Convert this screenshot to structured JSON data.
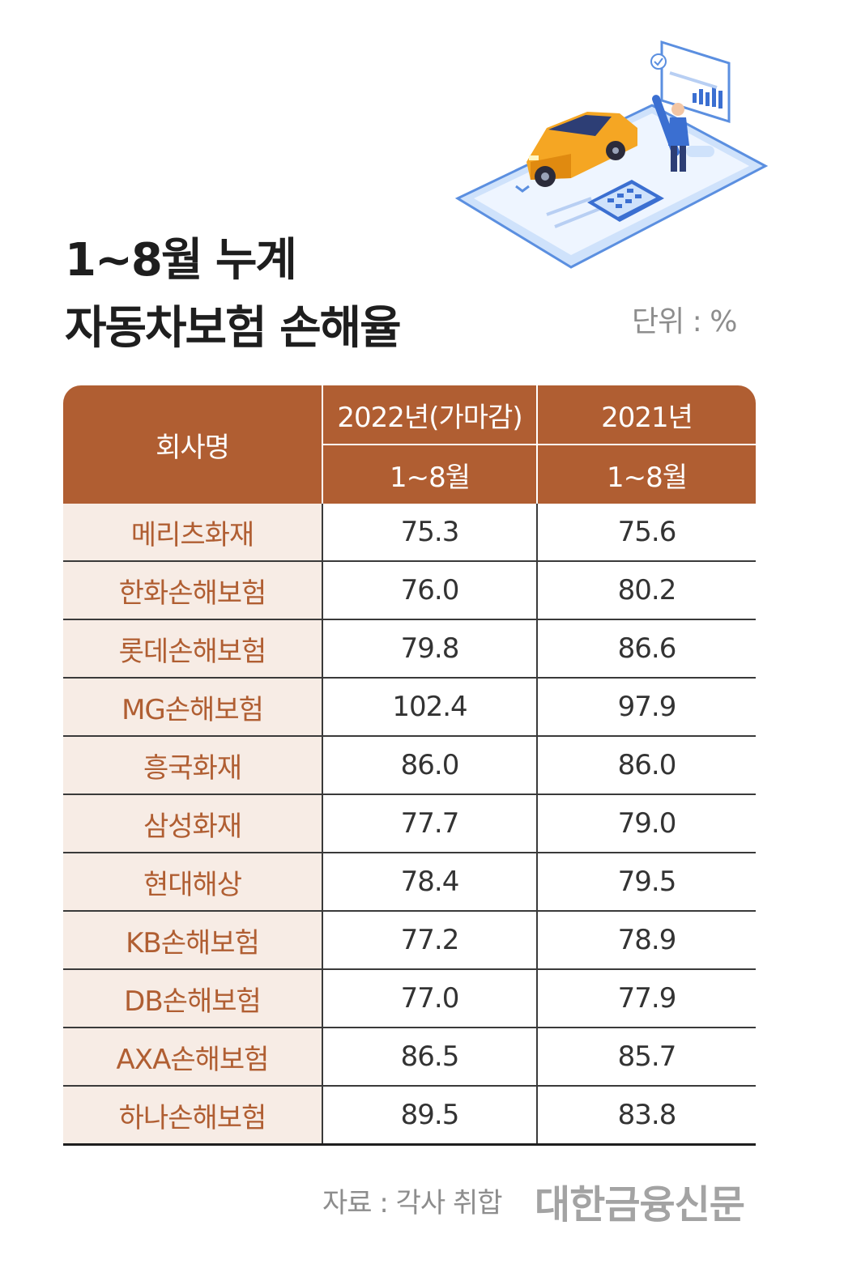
{
  "title": {
    "line1": "1~8월  누계",
    "line2": "자동차보험 손해율"
  },
  "unit": "단위 : %",
  "source": "자료 : 각사 취합",
  "brand": "대한금융신문",
  "colors": {
    "header": "#b05e32",
    "name_bg": "#f7ece5",
    "name_text": "#b05e32"
  },
  "chart_data": {
    "type": "table",
    "headers": {
      "company": "회사명",
      "col2022": "2022년(가마감)",
      "col2021": "2021년",
      "period2022": "1~8월",
      "period2021": "1~8월"
    },
    "rows": [
      {
        "company": "메리츠화재",
        "y2022": "75.3",
        "y2021": "75.6"
      },
      {
        "company": "한화손해보험",
        "y2022": "76.0",
        "y2021": "80.2"
      },
      {
        "company": "롯데손해보험",
        "y2022": "79.8",
        "y2021": "86.6"
      },
      {
        "company": "MG손해보험",
        "y2022": "102.4",
        "y2021": "97.9"
      },
      {
        "company": "흥국화재",
        "y2022": "86.0",
        "y2021": "86.0"
      },
      {
        "company": "삼성화재",
        "y2022": "77.7",
        "y2021": "79.0"
      },
      {
        "company": "현대해상",
        "y2022": "78.4",
        "y2021": "79.5"
      },
      {
        "company": "KB손해보험",
        "y2022": "77.2",
        "y2021": "78.9"
      },
      {
        "company": "DB손해보험",
        "y2022": "77.0",
        "y2021": "77.9"
      },
      {
        "company": "AXA손해보험",
        "y2022": "86.5",
        "y2021": "85.7"
      },
      {
        "company": "하나손해보험",
        "y2022": "89.5",
        "y2021": "83.8"
      }
    ]
  }
}
